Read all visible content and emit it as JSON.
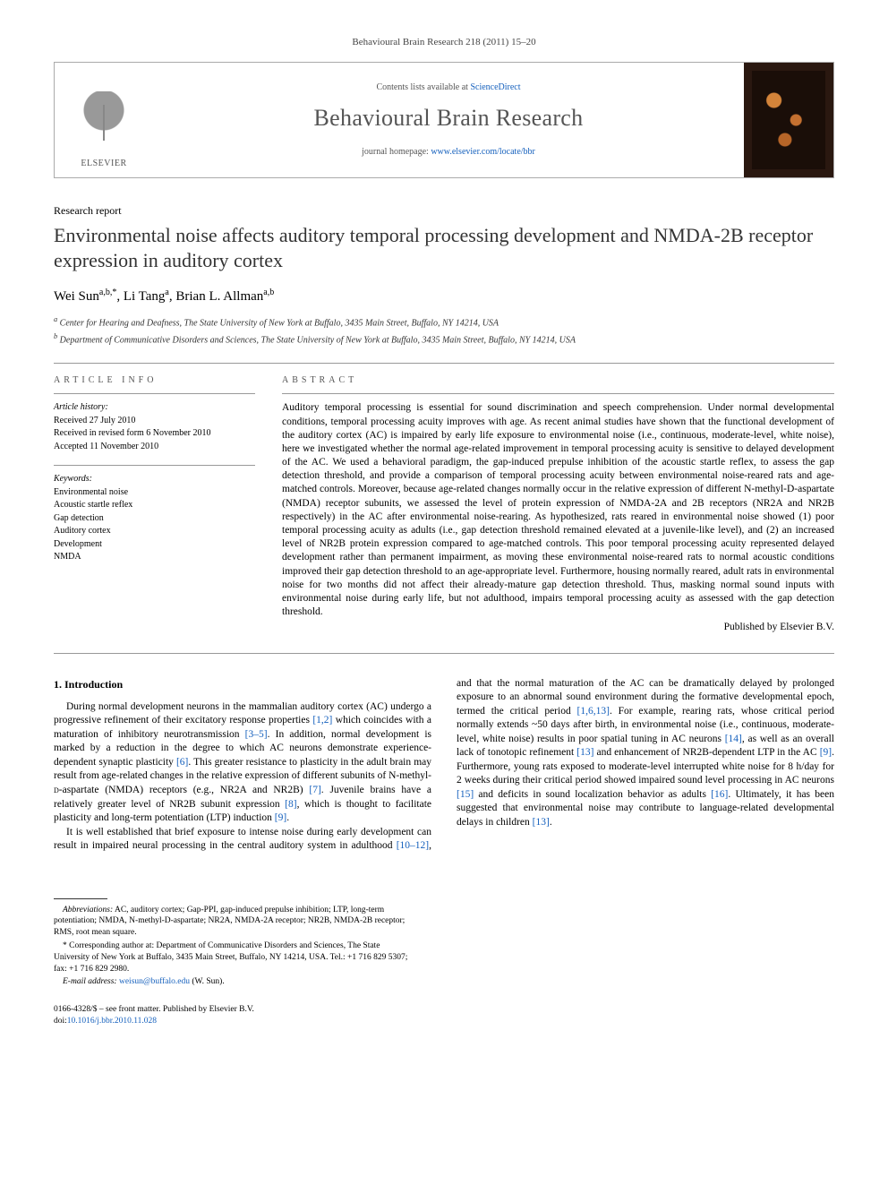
{
  "journal_ref": "Behavioural Brain Research 218 (2011) 15–20",
  "header": {
    "publisher": "ELSEVIER",
    "contents_line_prefix": "Contents lists available at ",
    "contents_link": "ScienceDirect",
    "journal_name": "Behavioural Brain Research",
    "homepage_prefix": "journal homepage: ",
    "homepage_url": "www.elsevier.com/locate/bbr"
  },
  "article_type": "Research report",
  "title": "Environmental noise affects auditory temporal processing development and NMDA-2B receptor expression in auditory cortex",
  "authors_html": "Wei Sun<sup>a,b,*</sup>, Li Tang<sup>a</sup>, Brian L. Allman<sup>a,b</sup>",
  "affiliations": [
    "a Center for Hearing and Deafness, The State University of New York at Buffalo, 3435 Main Street, Buffalo, NY 14214, USA",
    "b Department of Communicative Disorders and Sciences, The State University of New York at Buffalo, 3435 Main Street, Buffalo, NY 14214, USA"
  ],
  "article_info": {
    "heading": "article info",
    "history_label": "Article history:",
    "history": [
      "Received 27 July 2010",
      "Received in revised form 6 November 2010",
      "Accepted 11 November 2010"
    ],
    "keywords_label": "Keywords:",
    "keywords": [
      "Environmental noise",
      "Acoustic startle reflex",
      "Gap detection",
      "Auditory cortex",
      "Development",
      "NMDA"
    ]
  },
  "abstract": {
    "heading": "abstract",
    "text": "Auditory temporal processing is essential for sound discrimination and speech comprehension. Under normal developmental conditions, temporal processing acuity improves with age. As recent animal studies have shown that the functional development of the auditory cortex (AC) is impaired by early life exposure to environmental noise (i.e., continuous, moderate-level, white noise), here we investigated whether the normal age-related improvement in temporal processing acuity is sensitive to delayed development of the AC. We used a behavioral paradigm, the gap-induced prepulse inhibition of the acoustic startle reflex, to assess the gap detection threshold, and provide a comparison of temporal processing acuity between environmental noise-reared rats and age-matched controls. Moreover, because age-related changes normally occur in the relative expression of different N-methyl-D-aspartate (NMDA) receptor subunits, we assessed the level of protein expression of NMDA-2A and 2B receptors (NR2A and NR2B respectively) in the AC after environmental noise-rearing. As hypothesized, rats reared in environmental noise showed (1) poor temporal processing acuity as adults (i.e., gap detection threshold remained elevated at a juvenile-like level), and (2) an increased level of NR2B protein expression compared to age-matched controls. This poor temporal processing acuity represented delayed development rather than permanent impairment, as moving these environmental noise-reared rats to normal acoustic conditions improved their gap detection threshold to an age-appropriate level. Furthermore, housing normally reared, adult rats in environmental noise for two months did not affect their already-mature gap detection threshold. Thus, masking normal sound inputs with environmental noise during early life, but not adulthood, impairs temporal processing acuity as assessed with the gap detection threshold.",
    "publisher": "Published by Elsevier B.V."
  },
  "section1": {
    "heading": "1. Introduction",
    "p1_a": "During normal development neurons in the mammalian auditory cortex (AC) undergo a progressive refinement of their excitatory response properties ",
    "p1_r1": "[1,2]",
    "p1_b": " which coincides with a maturation of inhibitory neurotransmission ",
    "p1_r2": "[3–5]",
    "p1_c": ". In addition, normal development is marked by a reduction in the degree to which AC neurons demonstrate experience-dependent synaptic plasticity ",
    "p1_r3": "[6]",
    "p1_d": ". This greater resistance to plasticity in the adult brain may result from age-related changes in the relative expression of different subunits of N-methyl-",
    "p1_e": "-aspartate (NMDA) receptors (e.g., NR2A and",
    "p1_f": "NR2B) ",
    "p1_r4": "[7]",
    "p1_g": ". Juvenile brains have a relatively greater level of NR2B subunit expression ",
    "p1_r5": "[8]",
    "p1_h": ", which is thought to facilitate plasticity and long-term potentiation (LTP) induction ",
    "p1_r6": "[9]",
    "p1_i": ".",
    "p2_a": "It is well established that brief exposure to intense noise during early development can result in impaired neural processing in the central auditory system in adulthood ",
    "p2_r1": "[10–12]",
    "p2_b": ", and that the normal maturation of the AC can be dramatically delayed by prolonged exposure to an abnormal sound environment during the formative developmental epoch, termed the critical period ",
    "p2_r2": "[1,6,13]",
    "p2_c": ". For example, rearing rats, whose critical period normally extends ~50 days after birth, in environmental noise (i.e., continuous, moderate-level, white noise) results in poor spatial tuning in AC neurons ",
    "p2_r3": "[14]",
    "p2_d": ", as well as an overall lack of tonotopic refinement ",
    "p2_r4": "[13]",
    "p2_e": " and enhancement of NR2B-dependent LTP in the AC ",
    "p2_r5": "[9]",
    "p2_f": ". Furthermore, young rats exposed to moderate-level interrupted white noise for 8 h/day for 2 weeks during their critical period showed impaired sound level processing in AC neurons ",
    "p2_r6": "[15]",
    "p2_g": " and deficits in sound localization behavior as adults ",
    "p2_r7": "[16]",
    "p2_h": ". Ultimately, it has been suggested that environmental noise may contribute to language-related developmental delays in children ",
    "p2_r8": "[13]",
    "p2_i": "."
  },
  "footnotes": {
    "abbrev_label": "Abbreviations:",
    "abbrev": " AC, auditory cortex; Gap-PPI, gap-induced prepulse inhibition; LTP, long-term potentiation; NMDA, N-methyl-D-aspartate; NR2A, NMDA-2A receptor; NR2B, NMDA-2B receptor; RMS, root mean square.",
    "corr_label": "* Corresponding author at:",
    "corr": " Department of Communicative Disorders and Sciences, The State University of New York at Buffalo, 3435 Main Street, Buffalo, NY 14214, USA. Tel.: +1 716 829 5307; fax: +1 716 829 2980.",
    "email_label": "E-mail address:",
    "email": "weisun@buffalo.edu",
    "email_suffix": " (W. Sun)."
  },
  "bottom": {
    "line1": "0166-4328/$ – see front matter. Published by Elsevier B.V.",
    "doi_prefix": "doi:",
    "doi": "10.1016/j.bbr.2010.11.028"
  },
  "colors": {
    "link": "#1560bd",
    "text": "#000000",
    "muted": "#555555",
    "rule": "#999999"
  }
}
